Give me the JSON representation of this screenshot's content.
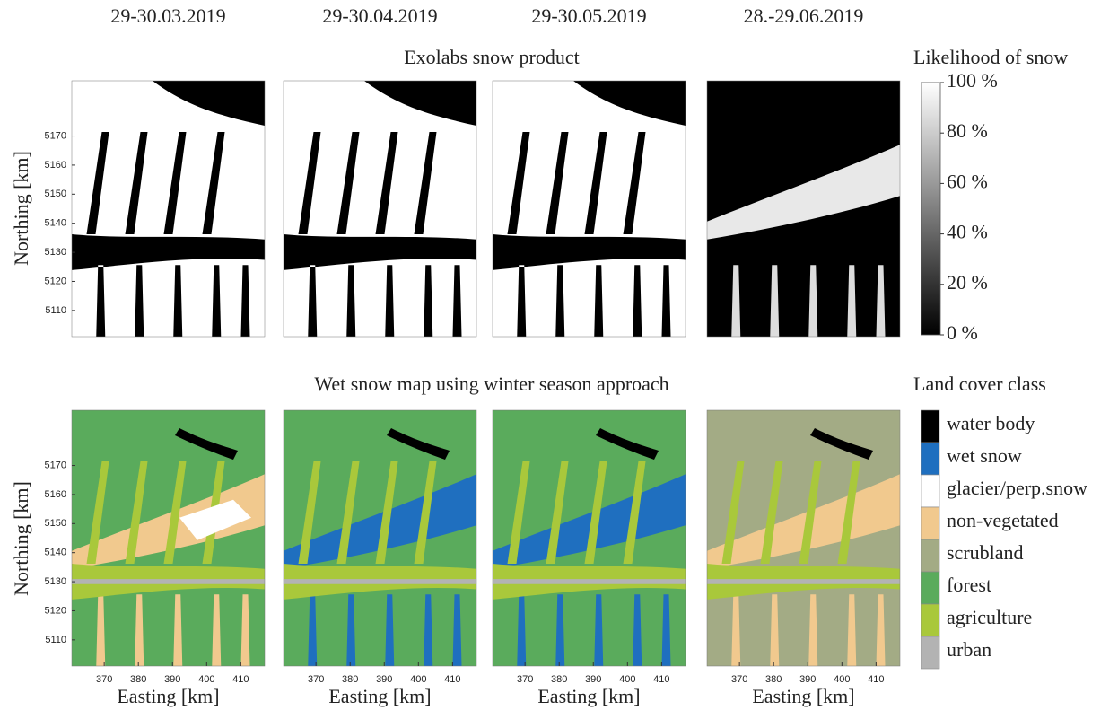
{
  "dates": [
    "29-30.03.2019",
    "29-30.04.2019",
    "29-30.05.2019",
    "28.-29.06.2019"
  ],
  "top_row": {
    "title": "Exolabs snow product",
    "ylabel": "Northing [km]"
  },
  "bottom_row": {
    "title": "Wet snow map using winter season approach",
    "ylabel": "Northing [km]",
    "xlabel": "Easting [km]"
  },
  "ylim": [
    5101,
    5189
  ],
  "yticks": [
    5110,
    5120,
    5130,
    5140,
    5150,
    5160,
    5170
  ],
  "xlim": [
    360.5,
    417
  ],
  "xticks": [
    370,
    380,
    390,
    400,
    410
  ],
  "colorbar": {
    "title": "Likelihood of snow",
    "lim": [
      0,
      100
    ],
    "ticks": [
      {
        "value": 0,
        "label": "0 %"
      },
      {
        "value": 20,
        "label": "20 %"
      },
      {
        "value": 40,
        "label": "40 %"
      },
      {
        "value": 60,
        "label": "60 %"
      },
      {
        "value": 80,
        "label": "80 %"
      },
      {
        "value": 100,
        "label": "100 %"
      }
    ]
  },
  "legend": {
    "title": "Land cover class",
    "classes": [
      {
        "name": "water body",
        "color": "#000000"
      },
      {
        "name": "wet snow",
        "color": "#1f6fbf"
      },
      {
        "name": "glacier/perp.snow",
        "color": "#ffffff"
      },
      {
        "name": "non-vegetated",
        "color": "#f1c98e"
      },
      {
        "name": "scrubland",
        "color": "#a3ab85"
      },
      {
        "name": "forest",
        "color": "#5aab5c"
      },
      {
        "name": "agriculture",
        "color": "#a9c83b"
      },
      {
        "name": "urban",
        "color": "#b3b3b3"
      }
    ]
  }
}
